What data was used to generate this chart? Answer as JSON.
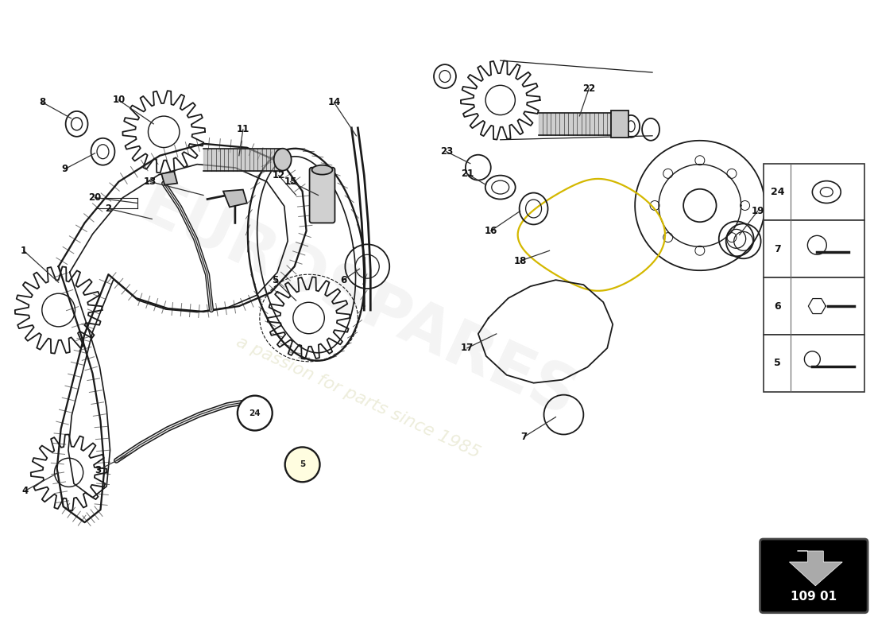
{
  "bg_color": "#ffffff",
  "watermark1": "EUROSPARES",
  "watermark2": "a passion for parts since 1985",
  "page_code": "109 01",
  "line_color": "#1a1a1a",
  "guide_color": "#cccc00",
  "parts_lw": 1.3,
  "chain_lw": 1.5
}
